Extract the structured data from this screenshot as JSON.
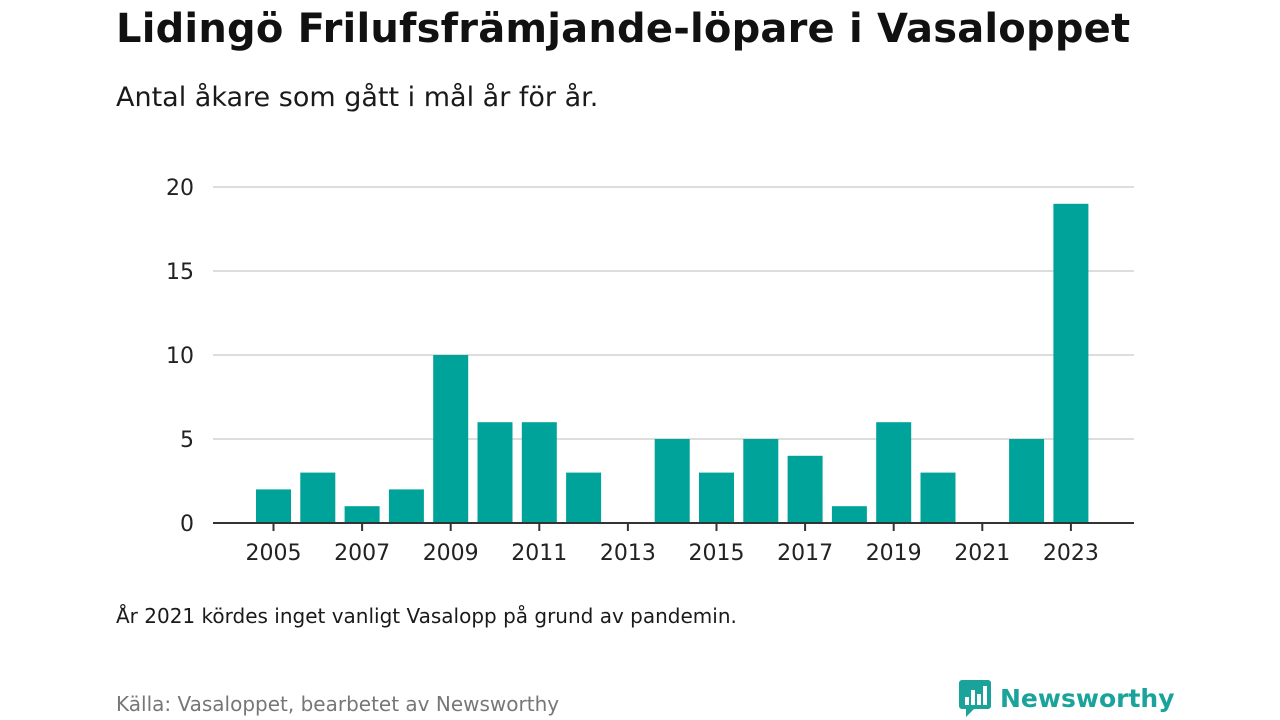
{
  "header": {
    "title": "Lidingö Frilufsfrämjande-löpare i Vasaloppet",
    "subtitle": "Antal åkare som gått i mål år för år."
  },
  "footer": {
    "note": "År 2021 kördes inget vanligt Vasalopp på grund av pandemin.",
    "source": "Källa: Vasaloppet, bearbetet av Newsworthy",
    "brand": "Newsworthy"
  },
  "colors": {
    "bar": "#00a39a",
    "brand": "#1aa39a",
    "grid": "#dddddd",
    "axis": "#333333"
  },
  "icons": {
    "brand_logo": "newsworthy-logo-icon"
  },
  "chart_data": {
    "type": "bar",
    "title": "Lidingö Frilufsfrämjande-löpare i Vasaloppet",
    "subtitle": "Antal åkare som gått i mål år för år.",
    "xlabel": "",
    "ylabel": "",
    "categories": [
      2005,
      2006,
      2007,
      2008,
      2009,
      2010,
      2011,
      2012,
      2013,
      2014,
      2015,
      2016,
      2017,
      2018,
      2019,
      2020,
      2021,
      2022,
      2023
    ],
    "values": [
      2,
      3,
      1,
      2,
      10,
      6,
      6,
      3,
      0,
      5,
      3,
      5,
      4,
      1,
      6,
      3,
      0,
      5,
      19
    ],
    "ylim": [
      0,
      20
    ],
    "yticks": [
      0,
      5,
      10,
      15,
      20
    ],
    "xticks": [
      2005,
      2007,
      2009,
      2011,
      2013,
      2015,
      2017,
      2019,
      2021,
      2023
    ],
    "grid": true,
    "legend": "none"
  }
}
